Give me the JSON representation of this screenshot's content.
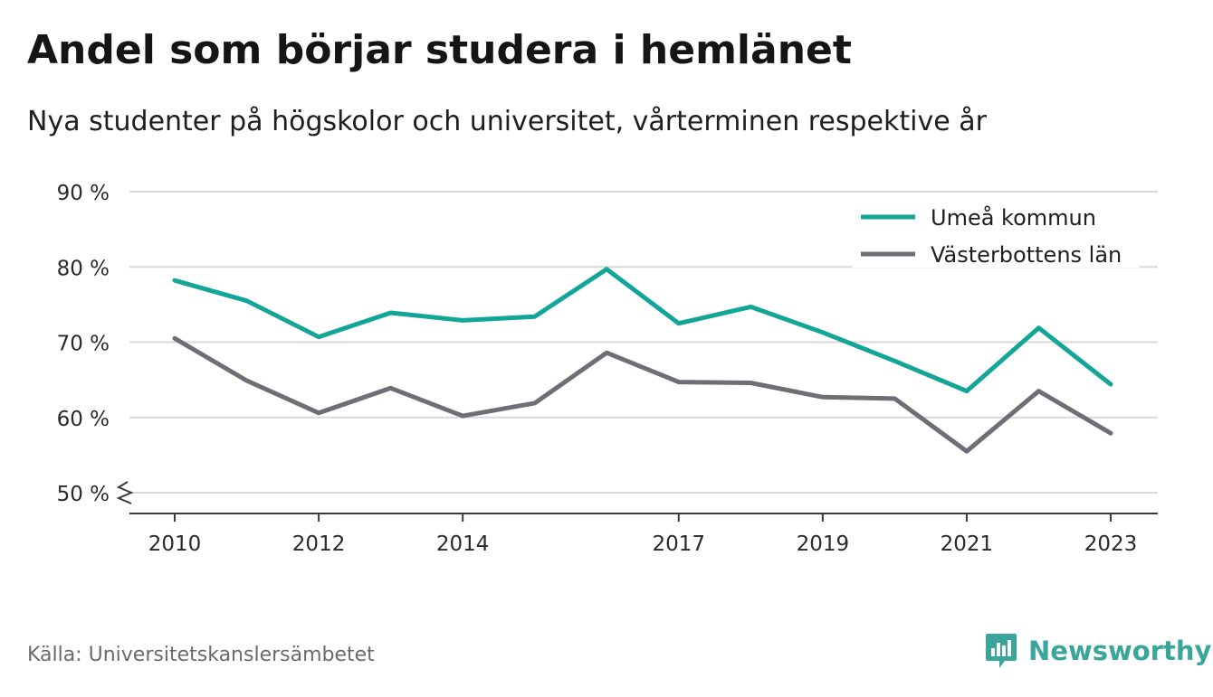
{
  "header": {
    "title": "Andel som börjar studera i hemlänet",
    "subtitle": "Nya studenter på högskolor och universitet, vårterminen respektive år"
  },
  "footer": {
    "source": "Källa: Universitetskanslersämbetet",
    "brand": "Newsworthy"
  },
  "colors": {
    "umea": "#12a598",
    "vasterbotten": "#6e6e76",
    "grid": "#d9d9d9",
    "axis": "#3a3a3a",
    "brand": "#3aa59a"
  },
  "chart_data": {
    "type": "line",
    "title": "Andel som börjar studera i hemlänet",
    "subtitle": "Nya studenter på högskolor och universitet, vårterminen respektive år",
    "x": [
      2010,
      2011,
      2012,
      2013,
      2014,
      2015,
      2016,
      2017,
      2018,
      2019,
      2020,
      2021,
      2022,
      2023
    ],
    "xticks": [
      "2010",
      "2012",
      "2014",
      "2017",
      "2019",
      "2021",
      "2023"
    ],
    "yticks": [
      "50 %",
      "60 %",
      "70 %",
      "80 %",
      "90 %"
    ],
    "ylim": [
      50,
      90
    ],
    "y_axis_break": true,
    "grid": true,
    "legend_position": "top-right",
    "series": [
      {
        "name": "Umeå kommun",
        "color": "#12a598",
        "values": [
          78.2,
          75.5,
          70.7,
          73.9,
          72.9,
          73.4,
          79.7,
          72.5,
          74.7,
          71.3,
          67.5,
          63.5,
          71.9,
          64.4
        ]
      },
      {
        "name": "Västerbottens län",
        "color": "#6e6e76",
        "values": [
          70.5,
          64.9,
          60.6,
          63.9,
          60.2,
          61.9,
          68.6,
          64.7,
          64.6,
          62.7,
          62.5,
          55.5,
          63.5,
          57.9
        ]
      }
    ]
  }
}
